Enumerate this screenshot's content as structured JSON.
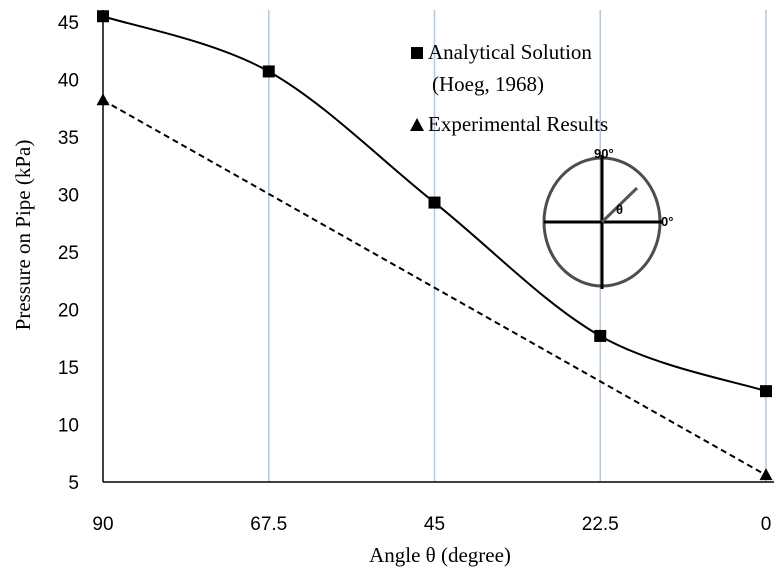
{
  "chart_data": {
    "type": "line",
    "xlabel": "Angle θ  (degree)",
    "ylabel": "Pressure on Pipe  (kPa)",
    "x_ticks": [
      "90",
      "67.5",
      "45",
      "22.5",
      "0"
    ],
    "y_ticks": [
      "5",
      "10",
      "15",
      "20",
      "25",
      "30",
      "35",
      "40",
      "45"
    ],
    "xlim": [
      90,
      0
    ],
    "ylim": [
      5,
      46
    ],
    "grid": "vertical",
    "legend_position": "top-right",
    "series": [
      {
        "name": "Analytical Solution (Hoeg, 1968)",
        "legend_lines": [
          "Analytical Solution",
          "(Hoeg, 1968)"
        ],
        "style": "solid-smooth",
        "marker": "square",
        "color": "#000000",
        "x": [
          90,
          67.5,
          45,
          22.5,
          0
        ],
        "y": [
          45.5,
          40.7,
          29.3,
          17.7,
          12.9
        ]
      },
      {
        "name": "Experimental Results",
        "legend_lines": [
          "Experimental Results"
        ],
        "style": "dashed",
        "marker": "triangle",
        "color": "#000000",
        "x": [
          90,
          0
        ],
        "y": [
          38.2,
          5.6
        ]
      }
    ],
    "inset": {
      "label_top": "90°",
      "label_right": "0°",
      "label_angle": "θ"
    }
  }
}
